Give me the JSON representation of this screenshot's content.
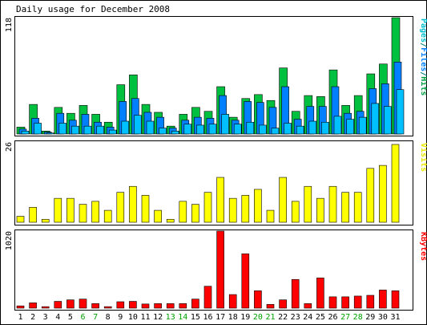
{
  "chart_data": [
    {
      "type": "bar",
      "title": "Daily usage for December 2008",
      "ylabel_top": "118",
      "ylim": [
        0,
        118
      ],
      "legend": [
        {
          "text": "Pages",
          "color": "#00c0d0"
        },
        {
          "text": "/",
          "color": "#008080"
        },
        {
          "text": "Files",
          "color": "#0080ff"
        },
        {
          "text": "/",
          "color": "#008080"
        },
        {
          "text": "Hits",
          "color": "#00a040"
        }
      ],
      "categories": [
        "1",
        "2",
        "3",
        "4",
        "5",
        "6",
        "7",
        "8",
        "9",
        "10",
        "11",
        "12",
        "13",
        "14",
        "15",
        "16",
        "17",
        "18",
        "19",
        "20",
        "21",
        "22",
        "23",
        "24",
        "25",
        "26",
        "27",
        "28",
        "29",
        "30",
        "31"
      ],
      "weekend_days": [
        "6",
        "7",
        "13",
        "14",
        "20",
        "21",
        "27",
        "28"
      ],
      "series": [
        {
          "name": "Hits",
          "color": "#00c040",
          "values": [
            7,
            30,
            3,
            27,
            21,
            29,
            20,
            12,
            50,
            60,
            30,
            22,
            8,
            20,
            27,
            23,
            48,
            17,
            36,
            40,
            34,
            67,
            23,
            39,
            38,
            65,
            29,
            39,
            61,
            71,
            118
          ]
        },
        {
          "name": "Files",
          "color": "#0080ff",
          "values": [
            5,
            16,
            2,
            21,
            14,
            20,
            12,
            7,
            33,
            36,
            22,
            17,
            6,
            14,
            17,
            16,
            39,
            14,
            33,
            32,
            27,
            48,
            15,
            28,
            28,
            48,
            21,
            23,
            46,
            51,
            73
          ]
        },
        {
          "name": "Pages",
          "color": "#00c0ff",
          "values": [
            3,
            11,
            1,
            11,
            8,
            8,
            8,
            4,
            13,
            19,
            13,
            6,
            3,
            10,
            9,
            10,
            20,
            10,
            12,
            9,
            6,
            11,
            8,
            13,
            12,
            18,
            15,
            17,
            31,
            28,
            45
          ]
        }
      ]
    },
    {
      "type": "bar",
      "ylabel_top": "26",
      "ylim": [
        0,
        26
      ],
      "legend": [
        {
          "text": "Visits",
          "color": "#e8e800"
        }
      ],
      "categories": [
        "1",
        "2",
        "3",
        "4",
        "5",
        "6",
        "7",
        "8",
        "9",
        "10",
        "11",
        "12",
        "13",
        "14",
        "15",
        "16",
        "17",
        "18",
        "19",
        "20",
        "21",
        "22",
        "23",
        "24",
        "25",
        "26",
        "27",
        "28",
        "29",
        "30",
        "31"
      ],
      "series": [
        {
          "name": "Visits",
          "color": "#ffff00",
          "values": [
            2,
            5,
            1,
            8,
            8,
            6,
            7,
            4,
            10,
            12,
            9,
            4,
            1,
            7,
            6,
            10,
            15,
            8,
            9,
            11,
            4,
            15,
            7,
            12,
            8,
            12,
            10,
            10,
            18,
            19,
            26
          ]
        }
      ]
    },
    {
      "type": "bar",
      "ylabel_top": "1020",
      "ylim": [
        0,
        1020
      ],
      "legend": [
        {
          "text": "KBytes",
          "color": "#ff0000"
        }
      ],
      "categories": [
        "1",
        "2",
        "3",
        "4",
        "5",
        "6",
        "7",
        "8",
        "9",
        "10",
        "11",
        "12",
        "13",
        "14",
        "15",
        "16",
        "17",
        "18",
        "19",
        "20",
        "21",
        "22",
        "23",
        "24",
        "25",
        "26",
        "27",
        "28",
        "29",
        "30",
        "31"
      ],
      "series": [
        {
          "name": "KBytes",
          "color": "#ff0000",
          "values": [
            30,
            70,
            20,
            90,
            110,
            120,
            60,
            20,
            85,
            90,
            55,
            60,
            60,
            60,
            120,
            290,
            1020,
            180,
            720,
            230,
            50,
            110,
            380,
            60,
            400,
            150,
            150,
            160,
            170,
            240,
            230
          ]
        }
      ]
    }
  ]
}
